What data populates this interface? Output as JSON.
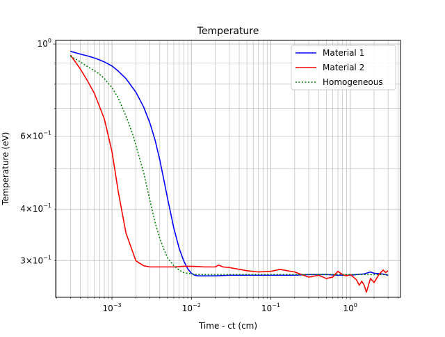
{
  "chart_data": {
    "type": "line",
    "title": "Temperature",
    "xlabel": "Time - ct (cm)",
    "ylabel": "Temperature (eV)",
    "xscale": "log",
    "yscale": "log",
    "xlim": [
      0.000195,
      4.3
    ],
    "ylim": [
      0.245,
      1.02
    ],
    "grid": "both major and minor",
    "legend_position": "top-right",
    "x_major_ticks": [
      {
        "value": 0.001,
        "base": "10",
        "exp": "−3"
      },
      {
        "value": 0.01,
        "base": "10",
        "exp": "−2"
      },
      {
        "value": 0.1,
        "base": "10",
        "exp": "−1"
      },
      {
        "value": 1,
        "base": "10",
        "exp": "0"
      }
    ],
    "y_ticks": [
      {
        "value": 1.0,
        "mantissa": "",
        "base": "10",
        "exp": "0"
      },
      {
        "value": 0.6,
        "mantissa": "6",
        "base": "10",
        "exp": "−1"
      },
      {
        "value": 0.4,
        "mantissa": "4",
        "base": "10",
        "exp": "−1"
      },
      {
        "value": 0.3,
        "mantissa": "3",
        "base": "10",
        "exp": "−1"
      }
    ],
    "series": [
      {
        "name": "Material 1",
        "color": "#0000ff",
        "style": "solid",
        "x": [
          0.0003,
          0.0004,
          0.0005,
          0.0006,
          0.0007,
          0.0008,
          0.001,
          0.0012,
          0.0015,
          0.002,
          0.0025,
          0.003,
          0.0035,
          0.004,
          0.0045,
          0.005,
          0.006,
          0.007,
          0.008,
          0.009,
          0.01,
          0.011,
          0.012,
          0.013,
          0.015,
          0.02,
          0.03,
          0.05,
          0.1,
          0.2,
          0.3,
          0.5,
          0.7,
          1.0,
          1.5,
          1.8,
          2.0,
          2.5,
          3.0
        ],
        "y": [
          0.96,
          0.945,
          0.935,
          0.925,
          0.915,
          0.905,
          0.885,
          0.86,
          0.825,
          0.765,
          0.705,
          0.645,
          0.585,
          0.525,
          0.47,
          0.425,
          0.36,
          0.322,
          0.3,
          0.287,
          0.28,
          0.277,
          0.276,
          0.276,
          0.276,
          0.276,
          0.277,
          0.277,
          0.277,
          0.277,
          0.278,
          0.278,
          0.277,
          0.277,
          0.279,
          0.282,
          0.28,
          0.279,
          0.277
        ]
      },
      {
        "name": "Material 2",
        "color": "#ff0000",
        "style": "solid",
        "x": [
          0.0003,
          0.0004,
          0.0005,
          0.0006,
          0.0008,
          0.001,
          0.0012,
          0.0015,
          0.002,
          0.0025,
          0.003,
          0.0035,
          0.004,
          0.0045,
          0.005,
          0.006,
          0.008,
          0.01,
          0.015,
          0.02,
          0.022,
          0.025,
          0.03,
          0.05,
          0.07,
          0.1,
          0.13,
          0.2,
          0.3,
          0.4,
          0.5,
          0.6,
          0.7,
          0.8,
          0.9,
          1.0,
          1.1,
          1.2,
          1.3,
          1.4,
          1.5,
          1.6,
          1.7,
          1.8,
          2.0,
          2.3,
          2.6,
          2.8,
          3.0
        ],
        "y": [
          0.94,
          0.87,
          0.81,
          0.76,
          0.66,
          0.55,
          0.44,
          0.35,
          0.3,
          0.292,
          0.29,
          0.29,
          0.29,
          0.29,
          0.29,
          0.29,
          0.291,
          0.291,
          0.29,
          0.29,
          0.293,
          0.29,
          0.289,
          0.284,
          0.282,
          0.283,
          0.286,
          0.282,
          0.274,
          0.277,
          0.272,
          0.274,
          0.283,
          0.278,
          0.276,
          0.278,
          0.274,
          0.27,
          0.262,
          0.268,
          0.262,
          0.252,
          0.262,
          0.272,
          0.266,
          0.278,
          0.285,
          0.281,
          0.284
        ]
      },
      {
        "name": "Homogeneous",
        "color": "#008000",
        "style": "dotted",
        "x": [
          0.0003,
          0.0004,
          0.0005,
          0.0006,
          0.0007,
          0.0008,
          0.001,
          0.0012,
          0.0015,
          0.0018,
          0.002,
          0.0025,
          0.003,
          0.0035,
          0.004,
          0.0045,
          0.005,
          0.006,
          0.007,
          0.008,
          0.01,
          0.012,
          0.015,
          0.02,
          0.05,
          0.1,
          0.5,
          1.0,
          3.0
        ],
        "y": [
          0.935,
          0.905,
          0.88,
          0.862,
          0.845,
          0.825,
          0.785,
          0.74,
          0.67,
          0.61,
          0.57,
          0.49,
          0.42,
          0.37,
          0.34,
          0.32,
          0.305,
          0.292,
          0.285,
          0.281,
          0.279,
          0.278,
          0.278,
          0.278,
          0.278,
          0.278,
          0.278,
          0.278,
          0.278
        ]
      }
    ]
  }
}
